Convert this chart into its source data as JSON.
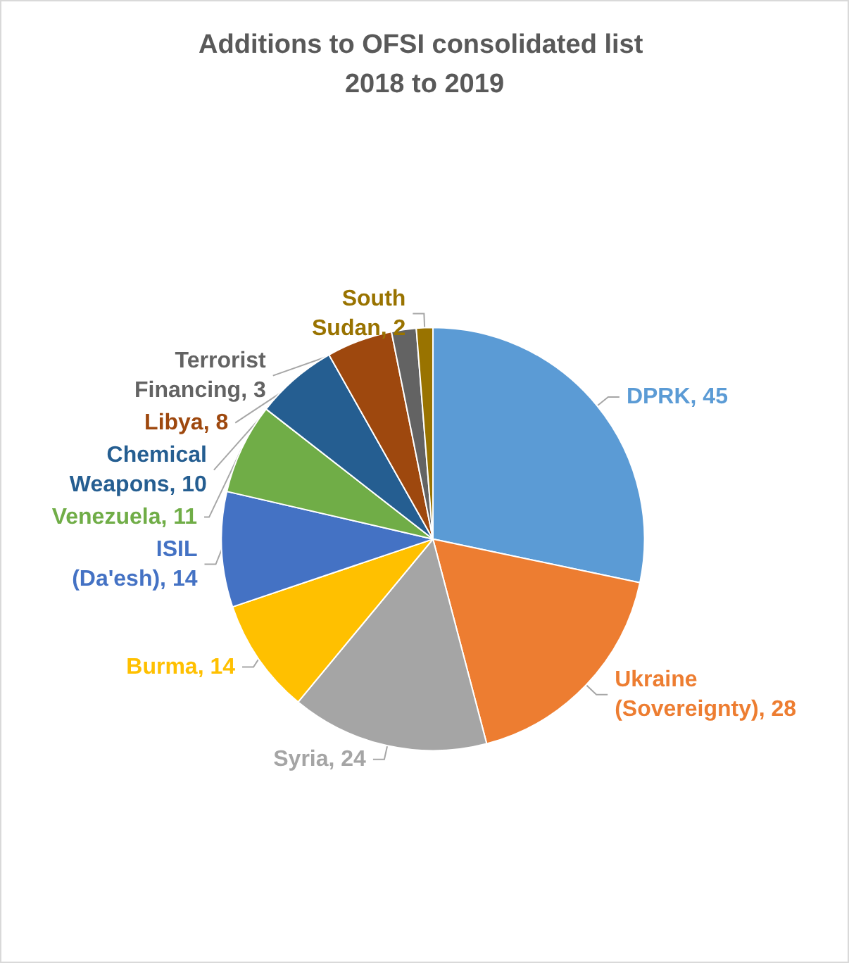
{
  "chart_data": {
    "type": "pie",
    "title": "Additions to OFSI consolidated list 2018 to 2019",
    "categories": [
      "DPRK",
      "Ukraine (Sovereignty)",
      "Syria",
      "Burma",
      "ISIL (Da'esh)",
      "Venezuela",
      "Chemical Weapons",
      "Libya",
      "Terrorist Financing",
      "South Sudan"
    ],
    "values": [
      45,
      28,
      24,
      14,
      14,
      11,
      10,
      8,
      3,
      2
    ],
    "colors": [
      "#5b9bd5",
      "#ed7d31",
      "#a5a5a5",
      "#ffc000",
      "#4472c4",
      "#70ad47",
      "#255e91",
      "#9e480e",
      "#636363",
      "#997300"
    ],
    "value_labels": [
      ", 45",
      ", 28",
      ", 24",
      ", 14",
      ", 14",
      ", 11",
      ", 10",
      ", 8",
      ", 3",
      ", 2"
    ]
  }
}
